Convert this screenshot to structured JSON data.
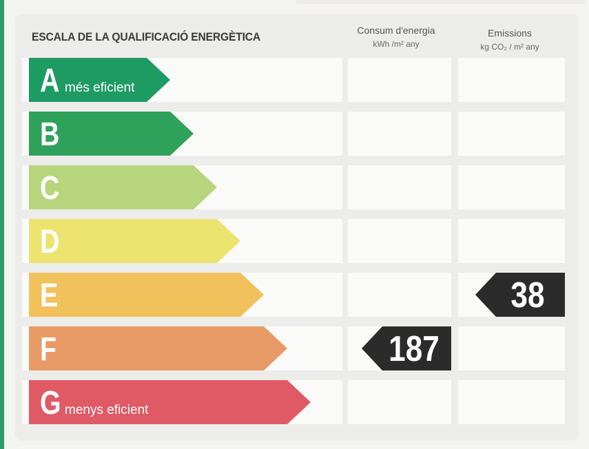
{
  "title": "ESCALA DE LA QUALIFICACIÓ ENERGÈTICA",
  "columns": {
    "consumption": {
      "label": "Consum d'energia",
      "unit": "kWh /m² any"
    },
    "emissions": {
      "label": "Emissions",
      "unit": "kg CO₂ / m² any"
    }
  },
  "bands": [
    {
      "letter": "A",
      "caption": "més eficient",
      "color": "#1e9a63"
    },
    {
      "letter": "B",
      "caption": "",
      "color": "#2ea25a"
    },
    {
      "letter": "C",
      "caption": "",
      "color": "#b7d57c"
    },
    {
      "letter": "D",
      "caption": "",
      "color": "#ece46e"
    },
    {
      "letter": "E",
      "caption": "",
      "color": "#f1c25c"
    },
    {
      "letter": "F",
      "caption": "",
      "color": "#e89a66"
    },
    {
      "letter": "G",
      "caption": "menys eficient",
      "color": "#e05a65"
    }
  ],
  "ratings": {
    "consumption": {
      "value": "187",
      "band": "F"
    },
    "emissions": {
      "value": "38",
      "band": "E"
    }
  },
  "tag_color": "#2b2b2b"
}
